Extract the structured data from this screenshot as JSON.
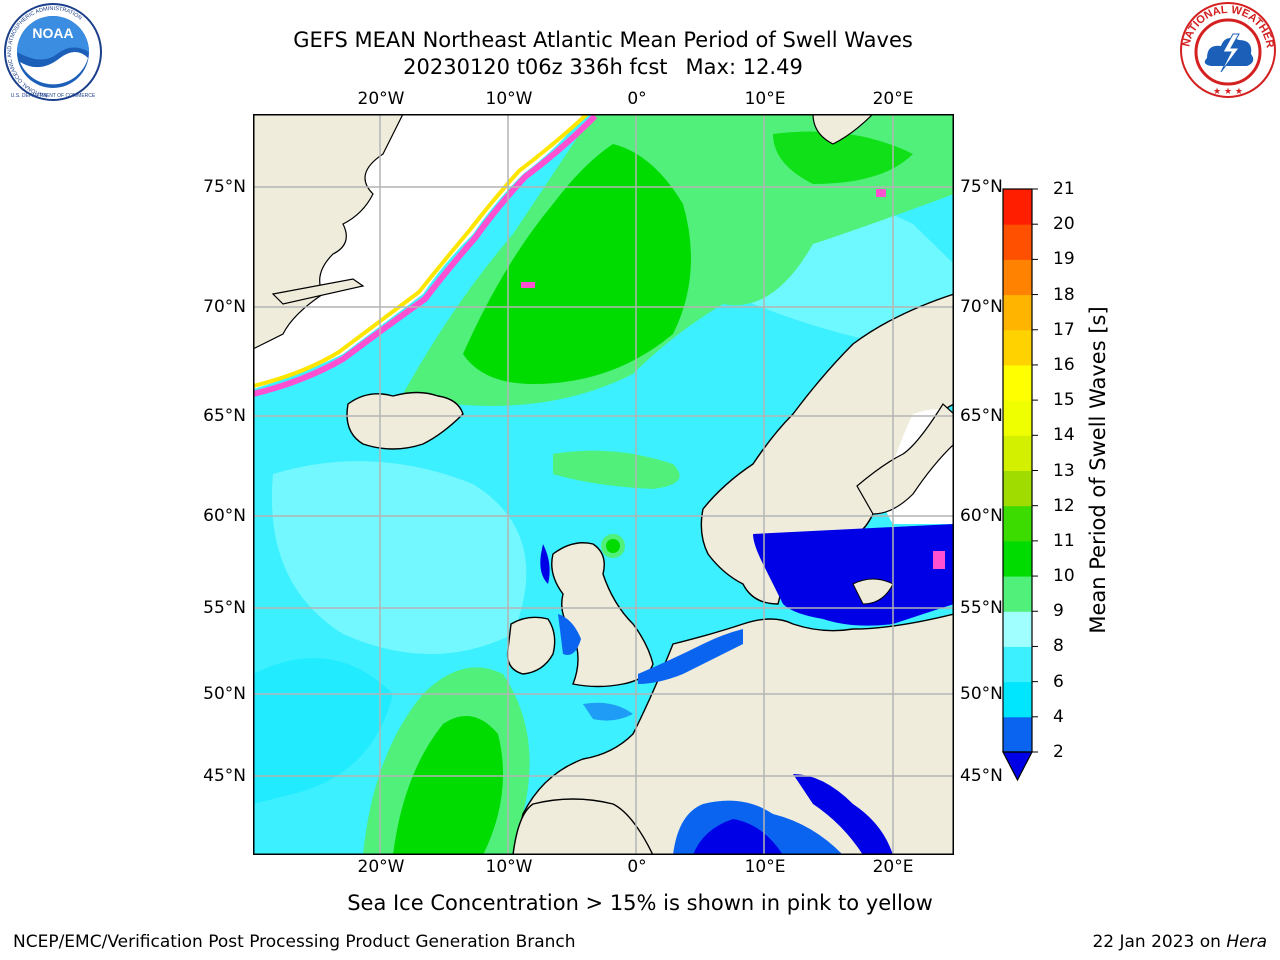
{
  "title_line1": "GEFS MEAN Northeast Atlantic Mean Period of Swell Waves",
  "title_run": "20230120 t06z 336h fcst",
  "title_max": "Max: 12.49",
  "lon_labels": [
    "20°W",
    "10°W",
    "0°",
    "10°E",
    "20°E"
  ],
  "lat_labels": [
    "75°N",
    "70°N",
    "65°N",
    "60°N",
    "55°N",
    "50°N",
    "45°N"
  ],
  "colorbar": {
    "title": "Mean Period of Swell Waves [s]",
    "ticks": [
      "2",
      "4",
      "6",
      "8",
      "9",
      "10",
      "11",
      "12",
      "13",
      "14",
      "15",
      "16",
      "17",
      "18",
      "19",
      "20",
      "21"
    ],
    "colors": [
      "#0a64f0",
      "#00e6ff",
      "#3cf0ff",
      "#a0ffff",
      "#50f07a",
      "#00dc00",
      "#3cdc00",
      "#a0dc00",
      "#d2f000",
      "#f0ff00",
      "#ffff00",
      "#ffd200",
      "#ffb400",
      "#ff8200",
      "#ff5000",
      "#ff1e00"
    ],
    "under_color": "#0000e6"
  },
  "colors": {
    "land": "#efecdc",
    "ice_free_white": "#ffffff",
    "grid": "#b4b4b4",
    "ice_pink": "#ff50d2",
    "ice_yellow": "#ffe600"
  },
  "ice_note": "Sea Ice Concentration > 15% is shown in pink to yellow",
  "footer_left": "NCEP/EMC/Verification Post Processing Product Generation Branch",
  "footer_date": "22 Jan 2023 on ",
  "footer_machine": "Hera",
  "logo_left": "NOAA",
  "logo_left_ring": "NATIONAL OCEANIC AND ATMOSPHERIC ADMINISTRATION",
  "logo_left_ring_bottom": "U.S. DEPARTMENT OF COMMERCE",
  "logo_right_ring": "NATIONAL WEATHER SERVICE"
}
